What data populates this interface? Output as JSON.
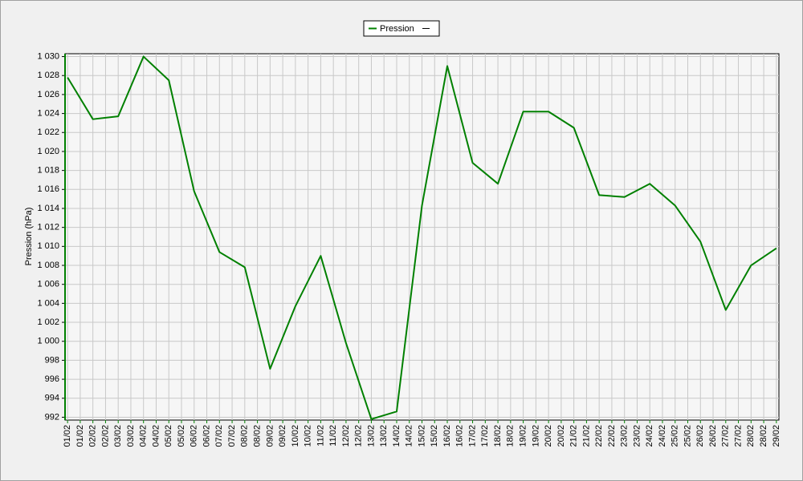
{
  "chart_data": {
    "type": "line",
    "ylabel": "Pression (hPa)",
    "x": [
      1,
      2,
      3,
      4,
      5,
      6,
      7,
      8,
      9,
      10,
      11,
      12,
      13,
      14,
      15,
      16,
      17,
      18,
      19,
      20,
      21,
      22,
      23,
      24,
      25,
      26,
      27,
      28,
      29
    ],
    "series": [
      {
        "name": "Pression",
        "color": "#008000",
        "values": [
          1027.8,
          1023.4,
          1023.7,
          1030,
          1027.5,
          1015.8,
          1009.4,
          1007.8,
          997.1,
          1003.7,
          1009,
          999.8,
          991.8,
          992.6,
          1014.3,
          1029,
          1018.8,
          1016.6,
          1024.2,
          1024.2,
          1022.5,
          1015.4,
          1015.2,
          1016.6,
          1014.3,
          1010.5,
          1003.3,
          1008,
          1009.8
        ]
      }
    ],
    "xlim": [
      0.9,
      29.1
    ],
    "ylim": [
      991.7,
      1030.3
    ],
    "yticks": [
      992,
      994,
      996,
      998,
      {
        "value": 1000,
        "label": "1 000"
      },
      {
        "value": 1002,
        "label": "1 002"
      },
      {
        "value": 1004,
        "label": "1 004"
      },
      {
        "value": 1006,
        "label": "1 006"
      },
      {
        "value": 1008,
        "label": "1 008"
      },
      {
        "value": 1010,
        "label": "1 010"
      },
      {
        "value": 1012,
        "label": "1 012"
      },
      {
        "value": 1014,
        "label": "1 014"
      },
      {
        "value": 1016,
        "label": "1 016"
      },
      {
        "value": 1018,
        "label": "1 018"
      },
      {
        "value": 1020,
        "label": "1 020"
      },
      {
        "value": 1022,
        "label": "1 022"
      },
      {
        "value": 1024,
        "label": "1 024"
      },
      {
        "value": 1026,
        "label": "1 026"
      },
      {
        "value": 1028,
        "label": "1 028"
      },
      {
        "value": 1030,
        "label": "1 030"
      }
    ],
    "xticks": [
      {
        "value": 1,
        "label": "01/02"
      },
      {
        "value": 1.5,
        "label": "01/02"
      },
      {
        "value": 2,
        "label": "02/02"
      },
      {
        "value": 2.5,
        "label": "02/02"
      },
      {
        "value": 3,
        "label": "03/02"
      },
      {
        "value": 3.5,
        "label": "03/02"
      },
      {
        "value": 4,
        "label": "04/02"
      },
      {
        "value": 4.5,
        "label": "04/02"
      },
      {
        "value": 5,
        "label": "05/02"
      },
      {
        "value": 5.5,
        "label": "05/02"
      },
      {
        "value": 6,
        "label": "06/02"
      },
      {
        "value": 6.5,
        "label": "06/02"
      },
      {
        "value": 7,
        "label": "07/02"
      },
      {
        "value": 7.5,
        "label": "07/02"
      },
      {
        "value": 8,
        "label": "08/02"
      },
      {
        "value": 8.5,
        "label": "08/02"
      },
      {
        "value": 9,
        "label": "09/02"
      },
      {
        "value": 9.5,
        "label": "09/02"
      },
      {
        "value": 10,
        "label": "10/02"
      },
      {
        "value": 10.5,
        "label": "10/02"
      },
      {
        "value": 11,
        "label": "11/02"
      },
      {
        "value": 11.5,
        "label": "11/02"
      },
      {
        "value": 12,
        "label": "12/02"
      },
      {
        "value": 12.5,
        "label": "12/02"
      },
      {
        "value": 13,
        "label": "13/02"
      },
      {
        "value": 13.5,
        "label": "13/02"
      },
      {
        "value": 14,
        "label": "14/02"
      },
      {
        "value": 14.5,
        "label": "14/02"
      },
      {
        "value": 15,
        "label": "15/02"
      },
      {
        "value": 15.5,
        "label": "15/02"
      },
      {
        "value": 16,
        "label": "16/02"
      },
      {
        "value": 16.5,
        "label": "16/02"
      },
      {
        "value": 17,
        "label": "17/02"
      },
      {
        "value": 17.5,
        "label": "17/02"
      },
      {
        "value": 18,
        "label": "18/02"
      },
      {
        "value": 18.5,
        "label": "18/02"
      },
      {
        "value": 19,
        "label": "19/02"
      },
      {
        "value": 19.5,
        "label": "19/02"
      },
      {
        "value": 20,
        "label": "20/02"
      },
      {
        "value": 20.5,
        "label": "20/02"
      },
      {
        "value": 21,
        "label": "21/02"
      },
      {
        "value": 21.5,
        "label": "21/02"
      },
      {
        "value": 22,
        "label": "22/02"
      },
      {
        "value": 22.5,
        "label": "22/02"
      },
      {
        "value": 23,
        "label": "23/02"
      },
      {
        "value": 23.5,
        "label": "23/02"
      },
      {
        "value": 24,
        "label": "24/02"
      },
      {
        "value": 24.5,
        "label": "24/02"
      },
      {
        "value": 25,
        "label": "25/02"
      },
      {
        "value": 25.5,
        "label": "25/02"
      },
      {
        "value": 26,
        "label": "26/02"
      },
      {
        "value": 26.5,
        "label": "26/02"
      },
      {
        "value": 27,
        "label": "27/02"
      },
      {
        "value": 27.5,
        "label": "27/02"
      },
      {
        "value": 28,
        "label": "28/02"
      },
      {
        "value": 28.5,
        "label": "28/02"
      },
      {
        "value": 29,
        "label": "29/02"
      }
    ],
    "grid": true
  }
}
